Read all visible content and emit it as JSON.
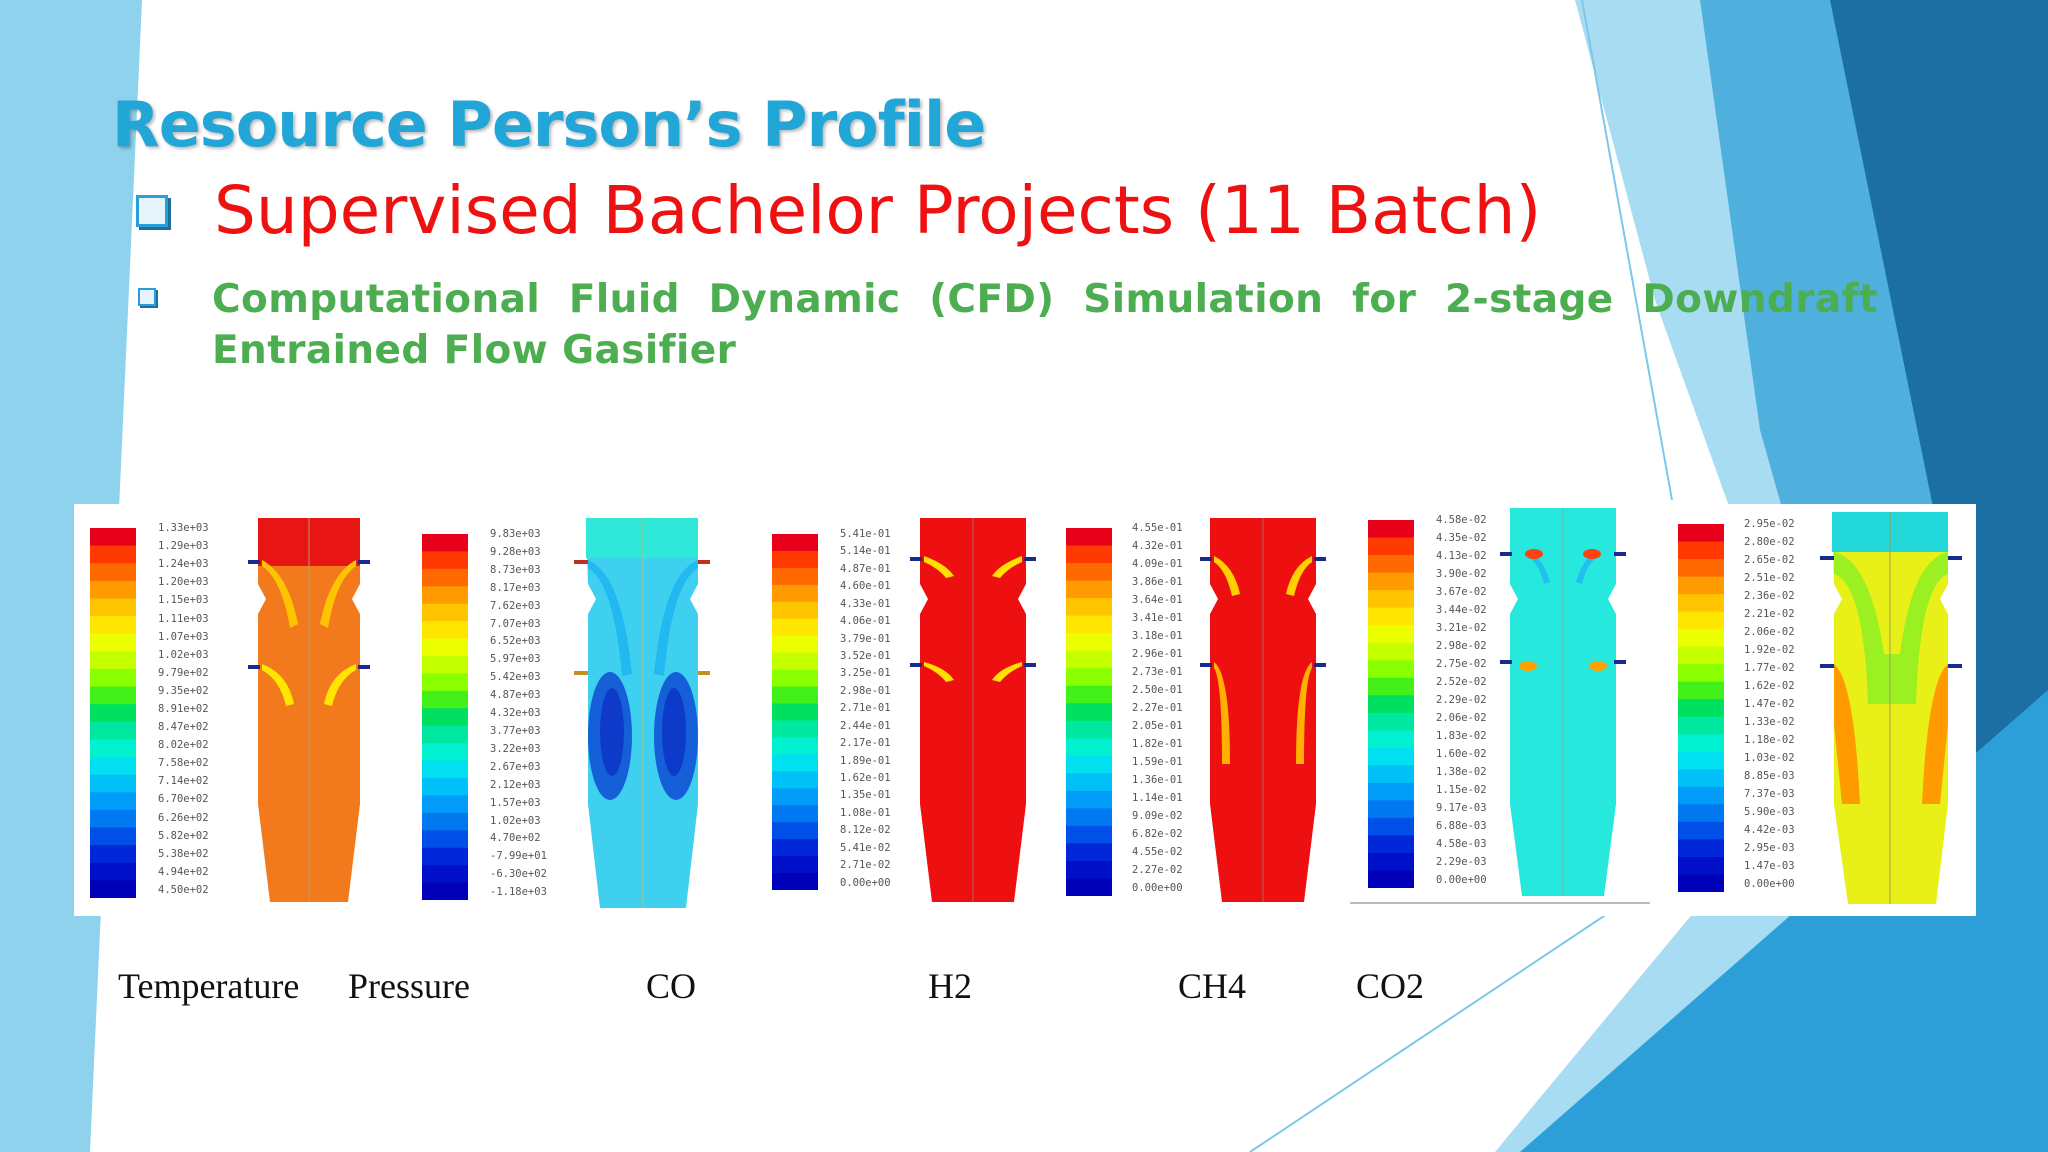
{
  "slide": {
    "title": "Resource Person’s Profile",
    "heading": "Supervised Bachelor Projects (11 Batch)",
    "subheading": "Computational Fluid Dynamic (CFD) Simulation for 2-stage Downdraft Entrained Flow Gasifier"
  },
  "legends": {
    "temperature": [
      "1.33e+03",
      "1.29e+03",
      "1.24e+03",
      "1.20e+03",
      "1.15e+03",
      "1.11e+03",
      "1.07e+03",
      "1.02e+03",
      "9.79e+02",
      "9.35e+02",
      "8.91e+02",
      "8.47e+02",
      "8.02e+02",
      "7.58e+02",
      "7.14e+02",
      "6.70e+02",
      "6.26e+02",
      "5.82e+02",
      "5.38e+02",
      "4.94e+02",
      "4.50e+02"
    ],
    "pressure": [
      "9.83e+03",
      "9.28e+03",
      "8.73e+03",
      "8.17e+03",
      "7.62e+03",
      "7.07e+03",
      "6.52e+03",
      "5.97e+03",
      "5.42e+03",
      "4.87e+03",
      "4.32e+03",
      "3.77e+03",
      "3.22e+03",
      "2.67e+03",
      "2.12e+03",
      "1.57e+03",
      "1.02e+03",
      "4.70e+02",
      "-7.99e+01",
      "-6.30e+02",
      "-1.18e+03"
    ],
    "co": [
      "5.41e-01",
      "5.14e-01",
      "4.87e-01",
      "4.60e-01",
      "4.33e-01",
      "4.06e-01",
      "3.79e-01",
      "3.52e-01",
      "3.25e-01",
      "2.98e-01",
      "2.71e-01",
      "2.44e-01",
      "2.17e-01",
      "1.89e-01",
      "1.62e-01",
      "1.35e-01",
      "1.08e-01",
      "8.12e-02",
      "5.41e-02",
      "2.71e-02",
      "0.00e+00"
    ],
    "h2": [
      "4.55e-01",
      "4.32e-01",
      "4.09e-01",
      "3.86e-01",
      "3.64e-01",
      "3.41e-01",
      "3.18e-01",
      "2.96e-01",
      "2.73e-01",
      "2.50e-01",
      "2.27e-01",
      "2.05e-01",
      "1.82e-01",
      "1.59e-01",
      "1.36e-01",
      "1.14e-01",
      "9.09e-02",
      "6.82e-02",
      "4.55e-02",
      "2.27e-02",
      "0.00e+00"
    ],
    "ch4": [
      "4.58e-02",
      "4.35e-02",
      "4.13e-02",
      "3.90e-02",
      "3.67e-02",
      "3.44e-02",
      "3.21e-02",
      "2.98e-02",
      "2.75e-02",
      "2.52e-02",
      "2.29e-02",
      "2.06e-02",
      "1.83e-02",
      "1.60e-02",
      "1.38e-02",
      "1.15e-02",
      "9.17e-03",
      "6.88e-03",
      "4.58e-03",
      "2.29e-03",
      "0.00e+00"
    ],
    "co2": [
      "2.95e-02",
      "2.80e-02",
      "2.65e-02",
      "2.51e-02",
      "2.36e-02",
      "2.21e-02",
      "2.06e-02",
      "1.92e-02",
      "1.77e-02",
      "1.62e-02",
      "1.47e-02",
      "1.33e-02",
      "1.18e-02",
      "1.03e-02",
      "8.85e-03",
      "7.37e-03",
      "5.90e-03",
      "4.42e-03",
      "2.95e-03",
      "1.47e-03",
      "0.00e+00"
    ]
  },
  "captions": [
    "Temperature",
    "Pressure",
    "CO",
    "H2",
    "CH4",
    "CO2"
  ],
  "colors": {
    "title": "#22a6d8",
    "heading": "#ee1111",
    "subheading": "#4cae50",
    "colormap": [
      "#e8001a",
      "#ff3a00",
      "#ff6a00",
      "#ff9a00",
      "#ffc400",
      "#ffe600",
      "#ecff00",
      "#c4ff00",
      "#8aff00",
      "#44f01a",
      "#00e060",
      "#00e8a0",
      "#00f0d0",
      "#00e0f0",
      "#00c0f8",
      "#009cf8",
      "#0078f0",
      "#0050e8",
      "#0028d8",
      "#0010c8",
      "#0000b8"
    ]
  }
}
